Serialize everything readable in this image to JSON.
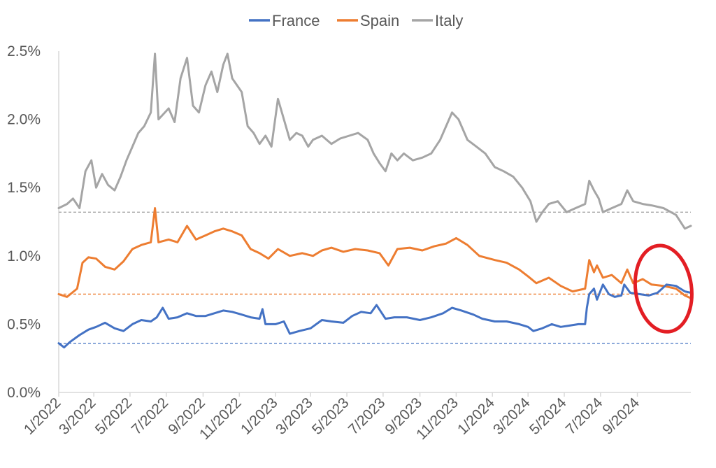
{
  "chart_data": {
    "type": "line",
    "title": "",
    "xlabel": "",
    "ylabel": "",
    "ylim": [
      0,
      2.5
    ],
    "y_ticks": [
      "0.0%",
      "0.5%",
      "1.0%",
      "1.5%",
      "2.0%",
      "2.5%"
    ],
    "x_ticks": [
      "1/2022",
      "3/2022",
      "5/2022",
      "7/2022",
      "9/2022",
      "11/2022",
      "1/2023",
      "3/2023",
      "5/2023",
      "7/2023",
      "9/2023",
      "11/2023",
      "1/2024",
      "3/2024",
      "5/2024",
      "7/2024",
      "9/2024"
    ],
    "x_range": [
      "2022-01-01",
      "2024-11-30"
    ],
    "legend_position": "top",
    "grid": false,
    "series": [
      {
        "name": "France",
        "color": "#4472C4",
        "reference_line": 0.36,
        "points": [
          [
            "2022-01-01",
            0.36
          ],
          [
            "2022-01-10",
            0.33
          ],
          [
            "2022-01-20",
            0.37
          ],
          [
            "2022-02-05",
            0.42
          ],
          [
            "2022-02-20",
            0.46
          ],
          [
            "2022-03-05",
            0.48
          ],
          [
            "2022-03-20",
            0.51
          ],
          [
            "2022-04-05",
            0.47
          ],
          [
            "2022-04-20",
            0.45
          ],
          [
            "2022-05-05",
            0.5
          ],
          [
            "2022-05-20",
            0.53
          ],
          [
            "2022-06-05",
            0.52
          ],
          [
            "2022-06-15",
            0.55
          ],
          [
            "2022-06-25",
            0.62
          ],
          [
            "2022-07-05",
            0.54
          ],
          [
            "2022-07-20",
            0.55
          ],
          [
            "2022-08-05",
            0.58
          ],
          [
            "2022-08-20",
            0.56
          ],
          [
            "2022-09-05",
            0.56
          ],
          [
            "2022-09-20",
            0.58
          ],
          [
            "2022-10-05",
            0.6
          ],
          [
            "2022-10-20",
            0.59
          ],
          [
            "2022-11-05",
            0.57
          ],
          [
            "2022-11-20",
            0.55
          ],
          [
            "2022-12-05",
            0.54
          ],
          [
            "2022-12-10",
            0.61
          ],
          [
            "2022-12-15",
            0.5
          ],
          [
            "2023-01-01",
            0.5
          ],
          [
            "2023-01-15",
            0.52
          ],
          [
            "2023-01-25",
            0.43
          ],
          [
            "2023-02-10",
            0.45
          ],
          [
            "2023-03-01",
            0.47
          ],
          [
            "2023-03-20",
            0.53
          ],
          [
            "2023-04-05",
            0.52
          ],
          [
            "2023-04-25",
            0.51
          ],
          [
            "2023-05-10",
            0.56
          ],
          [
            "2023-05-25",
            0.59
          ],
          [
            "2023-06-10",
            0.58
          ],
          [
            "2023-06-20",
            0.64
          ],
          [
            "2023-07-05",
            0.54
          ],
          [
            "2023-07-20",
            0.55
          ],
          [
            "2023-08-10",
            0.55
          ],
          [
            "2023-09-01",
            0.53
          ],
          [
            "2023-09-20",
            0.55
          ],
          [
            "2023-10-10",
            0.58
          ],
          [
            "2023-10-25",
            0.62
          ],
          [
            "2023-11-10",
            0.6
          ],
          [
            "2023-11-30",
            0.57
          ],
          [
            "2023-12-15",
            0.54
          ],
          [
            "2024-01-05",
            0.52
          ],
          [
            "2024-01-25",
            0.52
          ],
          [
            "2024-02-15",
            0.5
          ],
          [
            "2024-03-01",
            0.48
          ],
          [
            "2024-03-10",
            0.45
          ],
          [
            "2024-03-25",
            0.47
          ],
          [
            "2024-04-10",
            0.5
          ],
          [
            "2024-04-25",
            0.48
          ],
          [
            "2024-05-10",
            0.49
          ],
          [
            "2024-05-25",
            0.5
          ],
          [
            "2024-06-05",
            0.5
          ],
          [
            "2024-06-08",
            0.62
          ],
          [
            "2024-06-12",
            0.72
          ],
          [
            "2024-06-20",
            0.76
          ],
          [
            "2024-06-25",
            0.68
          ],
          [
            "2024-07-05",
            0.79
          ],
          [
            "2024-07-15",
            0.72
          ],
          [
            "2024-07-25",
            0.7
          ],
          [
            "2024-08-05",
            0.71
          ],
          [
            "2024-08-10",
            0.79
          ],
          [
            "2024-08-20",
            0.73
          ],
          [
            "2024-09-05",
            0.72
          ],
          [
            "2024-09-20",
            0.71
          ],
          [
            "2024-10-05",
            0.73
          ],
          [
            "2024-10-20",
            0.79
          ],
          [
            "2024-11-05",
            0.78
          ],
          [
            "2024-11-20",
            0.74
          ],
          [
            "2024-11-30",
            0.73
          ]
        ]
      },
      {
        "name": "Spain",
        "color": "#ED7D31",
        "reference_line": 0.72,
        "points": [
          [
            "2022-01-01",
            0.72
          ],
          [
            "2022-01-15",
            0.7
          ],
          [
            "2022-02-01",
            0.76
          ],
          [
            "2022-02-10",
            0.95
          ],
          [
            "2022-02-20",
            0.99
          ],
          [
            "2022-03-05",
            0.98
          ],
          [
            "2022-03-20",
            0.92
          ],
          [
            "2022-04-05",
            0.9
          ],
          [
            "2022-04-20",
            0.96
          ],
          [
            "2022-05-05",
            1.05
          ],
          [
            "2022-05-20",
            1.08
          ],
          [
            "2022-06-05",
            1.1
          ],
          [
            "2022-06-12",
            1.35
          ],
          [
            "2022-06-18",
            1.1
          ],
          [
            "2022-07-05",
            1.12
          ],
          [
            "2022-07-20",
            1.1
          ],
          [
            "2022-08-05",
            1.22
          ],
          [
            "2022-08-20",
            1.12
          ],
          [
            "2022-09-05",
            1.15
          ],
          [
            "2022-09-20",
            1.18
          ],
          [
            "2022-10-05",
            1.2
          ],
          [
            "2022-10-20",
            1.18
          ],
          [
            "2022-11-05",
            1.15
          ],
          [
            "2022-11-20",
            1.05
          ],
          [
            "2022-12-05",
            1.02
          ],
          [
            "2022-12-20",
            0.98
          ],
          [
            "2023-01-05",
            1.05
          ],
          [
            "2023-01-25",
            1.0
          ],
          [
            "2023-02-15",
            1.02
          ],
          [
            "2023-03-05",
            1.0
          ],
          [
            "2023-03-20",
            1.04
          ],
          [
            "2023-04-05",
            1.06
          ],
          [
            "2023-04-25",
            1.03
          ],
          [
            "2023-05-15",
            1.05
          ],
          [
            "2023-06-05",
            1.04
          ],
          [
            "2023-06-25",
            1.02
          ],
          [
            "2023-07-10",
            0.93
          ],
          [
            "2023-07-25",
            1.05
          ],
          [
            "2023-08-15",
            1.06
          ],
          [
            "2023-09-05",
            1.04
          ],
          [
            "2023-09-25",
            1.07
          ],
          [
            "2023-10-15",
            1.09
          ],
          [
            "2023-11-01",
            1.13
          ],
          [
            "2023-11-20",
            1.08
          ],
          [
            "2023-12-10",
            1.0
          ],
          [
            "2024-01-05",
            0.97
          ],
          [
            "2024-01-25",
            0.95
          ],
          [
            "2024-02-15",
            0.9
          ],
          [
            "2024-03-01",
            0.85
          ],
          [
            "2024-03-15",
            0.8
          ],
          [
            "2024-04-05",
            0.84
          ],
          [
            "2024-04-25",
            0.78
          ],
          [
            "2024-05-15",
            0.74
          ],
          [
            "2024-06-05",
            0.76
          ],
          [
            "2024-06-12",
            0.97
          ],
          [
            "2024-06-20",
            0.88
          ],
          [
            "2024-06-25",
            0.93
          ],
          [
            "2024-07-05",
            0.84
          ],
          [
            "2024-07-20",
            0.86
          ],
          [
            "2024-08-05",
            0.8
          ],
          [
            "2024-08-15",
            0.9
          ],
          [
            "2024-08-25",
            0.8
          ],
          [
            "2024-09-10",
            0.83
          ],
          [
            "2024-09-25",
            0.79
          ],
          [
            "2024-10-15",
            0.78
          ],
          [
            "2024-11-05",
            0.76
          ],
          [
            "2024-11-20",
            0.71
          ],
          [
            "2024-11-30",
            0.69
          ]
        ]
      },
      {
        "name": "Italy",
        "color": "#A5A5A5",
        "reference_line": 1.32,
        "points": [
          [
            "2022-01-01",
            1.35
          ],
          [
            "2022-01-15",
            1.38
          ],
          [
            "2022-01-25",
            1.42
          ],
          [
            "2022-02-05",
            1.35
          ],
          [
            "2022-02-15",
            1.62
          ],
          [
            "2022-02-25",
            1.7
          ],
          [
            "2022-03-05",
            1.5
          ],
          [
            "2022-03-15",
            1.6
          ],
          [
            "2022-03-25",
            1.52
          ],
          [
            "2022-04-05",
            1.48
          ],
          [
            "2022-04-15",
            1.58
          ],
          [
            "2022-04-25",
            1.7
          ],
          [
            "2022-05-05",
            1.8
          ],
          [
            "2022-05-15",
            1.9
          ],
          [
            "2022-05-25",
            1.95
          ],
          [
            "2022-06-05",
            2.05
          ],
          [
            "2022-06-12",
            2.48
          ],
          [
            "2022-06-18",
            2.0
          ],
          [
            "2022-07-05",
            2.08
          ],
          [
            "2022-07-15",
            1.98
          ],
          [
            "2022-07-25",
            2.3
          ],
          [
            "2022-08-05",
            2.45
          ],
          [
            "2022-08-15",
            2.1
          ],
          [
            "2022-08-25",
            2.05
          ],
          [
            "2022-09-05",
            2.25
          ],
          [
            "2022-09-15",
            2.35
          ],
          [
            "2022-09-25",
            2.2
          ],
          [
            "2022-10-05",
            2.4
          ],
          [
            "2022-10-12",
            2.48
          ],
          [
            "2022-10-20",
            2.3
          ],
          [
            "2022-11-05",
            2.2
          ],
          [
            "2022-11-15",
            1.95
          ],
          [
            "2022-11-25",
            1.9
          ],
          [
            "2022-12-05",
            1.82
          ],
          [
            "2022-12-15",
            1.88
          ],
          [
            "2022-12-25",
            1.8
          ],
          [
            "2023-01-05",
            2.15
          ],
          [
            "2023-01-15",
            2.0
          ],
          [
            "2023-01-25",
            1.85
          ],
          [
            "2023-02-05",
            1.9
          ],
          [
            "2023-02-15",
            1.88
          ],
          [
            "2023-02-25",
            1.8
          ],
          [
            "2023-03-05",
            1.85
          ],
          [
            "2023-03-20",
            1.88
          ],
          [
            "2023-04-05",
            1.82
          ],
          [
            "2023-04-20",
            1.86
          ],
          [
            "2023-05-05",
            1.88
          ],
          [
            "2023-05-20",
            1.9
          ],
          [
            "2023-06-05",
            1.85
          ],
          [
            "2023-06-15",
            1.75
          ],
          [
            "2023-06-25",
            1.68
          ],
          [
            "2023-07-05",
            1.62
          ],
          [
            "2023-07-15",
            1.75
          ],
          [
            "2023-07-25",
            1.7
          ],
          [
            "2023-08-05",
            1.75
          ],
          [
            "2023-08-20",
            1.7
          ],
          [
            "2023-09-05",
            1.72
          ],
          [
            "2023-09-20",
            1.75
          ],
          [
            "2023-10-05",
            1.85
          ],
          [
            "2023-10-15",
            1.95
          ],
          [
            "2023-10-25",
            2.05
          ],
          [
            "2023-11-05",
            2.0
          ],
          [
            "2023-11-20",
            1.85
          ],
          [
            "2023-12-05",
            1.8
          ],
          [
            "2023-12-20",
            1.75
          ],
          [
            "2024-01-05",
            1.65
          ],
          [
            "2024-01-20",
            1.62
          ],
          [
            "2024-02-05",
            1.58
          ],
          [
            "2024-02-20",
            1.5
          ],
          [
            "2024-03-05",
            1.4
          ],
          [
            "2024-03-15",
            1.25
          ],
          [
            "2024-03-25",
            1.32
          ],
          [
            "2024-04-05",
            1.38
          ],
          [
            "2024-04-20",
            1.4
          ],
          [
            "2024-05-05",
            1.32
          ],
          [
            "2024-05-20",
            1.35
          ],
          [
            "2024-06-05",
            1.38
          ],
          [
            "2024-06-12",
            1.55
          ],
          [
            "2024-06-20",
            1.48
          ],
          [
            "2024-06-28",
            1.42
          ],
          [
            "2024-07-05",
            1.32
          ],
          [
            "2024-07-20",
            1.35
          ],
          [
            "2024-08-05",
            1.38
          ],
          [
            "2024-08-15",
            1.48
          ],
          [
            "2024-08-25",
            1.4
          ],
          [
            "2024-09-10",
            1.38
          ],
          [
            "2024-09-25",
            1.37
          ],
          [
            "2024-10-15",
            1.35
          ],
          [
            "2024-11-05",
            1.3
          ],
          [
            "2024-11-20",
            1.2
          ],
          [
            "2024-11-30",
            1.22
          ]
        ]
      }
    ],
    "annotation": {
      "shape": "ellipse",
      "color": "#E31E24",
      "center_date": "2024-10-15",
      "center_value": 0.76
    }
  }
}
